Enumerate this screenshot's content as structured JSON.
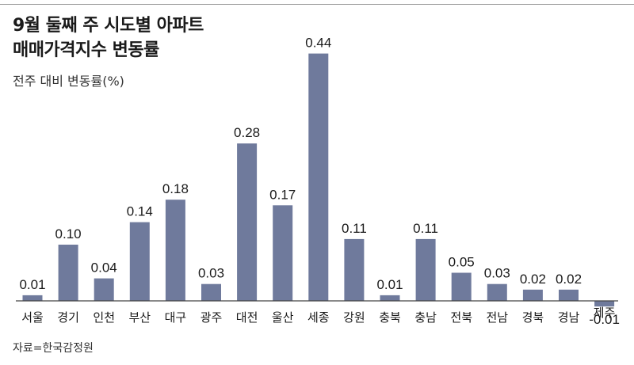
{
  "title_line1": "9월 둘째 주 시도별 아파트",
  "title_line2": "매매가격지수 변동률",
  "source": "자료=한국감정원",
  "chart_data": {
    "type": "bar",
    "title": "9월 둘째 주 시도별 아파트 매매가격지수 변동률",
    "subtitle": "전주 대비 변동률(%)",
    "xlabel": "",
    "ylabel": "",
    "categories": [
      "서울",
      "경기",
      "인천",
      "부산",
      "대구",
      "광주",
      "대전",
      "울산",
      "세종",
      "강원",
      "충북",
      "충남",
      "전북",
      "전남",
      "경북",
      "경남",
      "제주"
    ],
    "values": [
      0.01,
      0.1,
      0.04,
      0.14,
      0.18,
      0.03,
      0.28,
      0.17,
      0.44,
      0.11,
      0.01,
      0.11,
      0.05,
      0.03,
      0.02,
      0.02,
      -0.01
    ],
    "value_labels": [
      "0.01",
      "0.10",
      "0.04",
      "0.14",
      "0.18",
      "0.03",
      "0.28",
      "0.17",
      "0.44",
      "0.11",
      "0.01",
      "0.11",
      "0.05",
      "0.03",
      "0.02",
      "0.02",
      "-0.01"
    ],
    "ylim": [
      -0.01,
      0.44
    ],
    "grid": false,
    "legend": "none",
    "bar_color": "#6f7a9c"
  }
}
